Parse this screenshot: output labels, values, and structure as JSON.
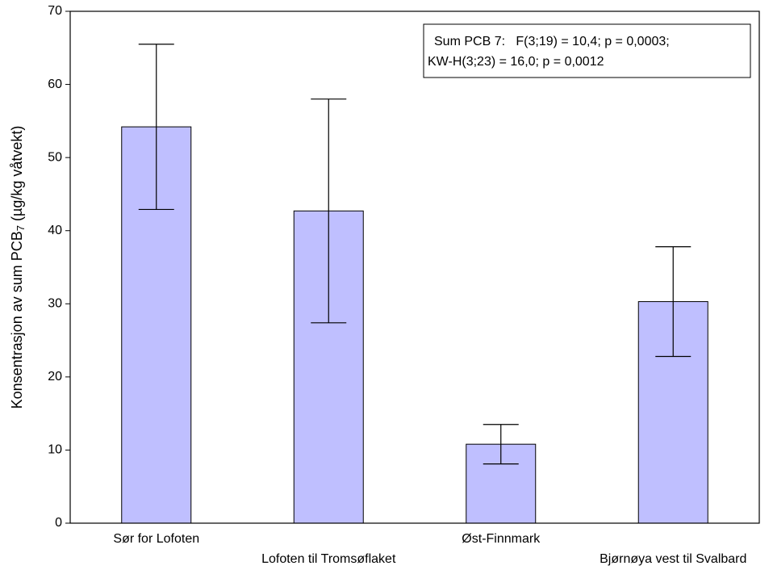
{
  "chart_data": {
    "type": "bar",
    "categories": [
      "Sør for Lofoten",
      "Lofoten til Tromsøflaket",
      "Øst-Finnmark",
      "Bjørnøya vest til Svalbard"
    ],
    "values": [
      54.2,
      42.7,
      10.8,
      30.3
    ],
    "errors": [
      11.3,
      15.3,
      2.7,
      7.5
    ],
    "color": "#bfbfff",
    "ylabel": [
      "Konsentrasjon av sum PCB",
      "7",
      "(µg/kg våtvekt)"
    ],
    "annotation": [
      "Sum PCB 7:   F(3;19) = 10,4; p = 0,0003;",
      "KW-H(3;23) = 16,0; p = 0,0012"
    ],
    "ylim": [
      0,
      70
    ],
    "yticks": [
      0,
      10,
      20,
      30,
      40,
      50,
      60,
      70
    ],
    "grid": false
  }
}
